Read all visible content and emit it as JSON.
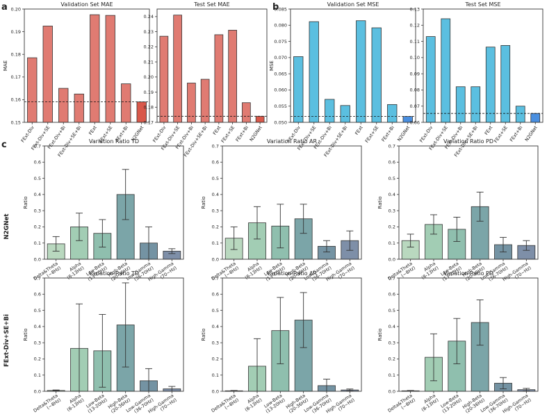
{
  "panel_letters": [
    "a",
    "b",
    "c"
  ],
  "row_labels": [
    "N2GNet",
    "FExt-Div+SE+Bi"
  ],
  "chart_data": [
    {
      "type": "bar",
      "title": "Validation Set MAE",
      "ylabel": "MAE",
      "categories": [
        "FExt-Div",
        "FExt-Div+SE",
        "FExt-Div+Bi",
        "FExt-Div+SE+Bi",
        "FExt",
        "FExt+SE",
        "FExt+Bi",
        "N2GNet"
      ],
      "values": [
        0.1785,
        0.1925,
        0.165,
        0.1625,
        0.1975,
        0.1972,
        0.167,
        0.159
      ],
      "ylim": [
        0.15,
        0.2
      ],
      "yticks": [
        "0.15",
        "0.16",
        "0.17",
        "0.18",
        "0.19",
        "0.20"
      ],
      "reference_line": 0.159,
      "colors": [
        "#e07b72",
        "#e07b72",
        "#e07b72",
        "#e07b72",
        "#e07b72",
        "#e07b72",
        "#e07b72",
        "#d9584a"
      ]
    },
    {
      "type": "bar",
      "title": "Test Set MAE",
      "ylabel": "",
      "categories": [
        "FExt-Div",
        "FExt-Div+SE",
        "FExt-Div+Bi",
        "FExt-Div+SE+Bi",
        "FExt",
        "FExt+SE",
        "FExt+Bi",
        "N2GNet"
      ],
      "values": [
        0.227,
        0.241,
        0.196,
        0.1985,
        0.228,
        0.231,
        0.183,
        0.174
      ],
      "ylim": [
        0.17,
        0.245
      ],
      "yticks": [
        "0.17",
        "0.18",
        "0.19",
        "0.20",
        "0.21",
        "0.22",
        "0.23",
        "0.24"
      ],
      "reference_line": 0.174,
      "colors": [
        "#e07b72",
        "#e07b72",
        "#e07b72",
        "#e07b72",
        "#e07b72",
        "#e07b72",
        "#e07b72",
        "#d9584a"
      ]
    },
    {
      "type": "bar",
      "title": "Validation Set MSE",
      "ylabel": "MSE",
      "categories": [
        "FExt-Div",
        "FExt-Div+SE",
        "FExt-Div+Bi",
        "FExt-Div+SE+Bi",
        "FExt",
        "FExt+SE",
        "FExt+Bi",
        "N2GNet"
      ],
      "values": [
        0.0703,
        0.0811,
        0.0571,
        0.0552,
        0.0814,
        0.0792,
        0.0555,
        0.0518
      ],
      "ylim": [
        0.05,
        0.085
      ],
      "yticks": [
        "0.050",
        "0.055",
        "0.060",
        "0.065",
        "0.070",
        "0.075",
        "0.080",
        "0.085"
      ],
      "reference_line": 0.0518,
      "colors": [
        "#5bbfe0",
        "#5bbfe0",
        "#5bbfe0",
        "#5bbfe0",
        "#5bbfe0",
        "#5bbfe0",
        "#5bbfe0",
        "#4a8fe0"
      ]
    },
    {
      "type": "bar",
      "title": "Test Set MSE",
      "ylabel": "",
      "categories": [
        "FExt-Div",
        "FExt-Div+SE",
        "FExt-Div+Bi",
        "FExt-Div+SE+Bi",
        "FExt",
        "FExt+SE",
        "FExt+Bi",
        "N2GNet"
      ],
      "values": [
        0.113,
        0.124,
        0.082,
        0.082,
        0.1065,
        0.1075,
        0.07,
        0.0655
      ],
      "ylim": [
        0.06,
        0.13
      ],
      "yticks": [
        "0.06",
        "0.07",
        "0.08",
        "0.09",
        "0.10",
        "0.11",
        "0.12",
        "0.13"
      ],
      "reference_line": 0.0655,
      "colors": [
        "#5bbfe0",
        "#5bbfe0",
        "#5bbfe0",
        "#5bbfe0",
        "#5bbfe0",
        "#5bbfe0",
        "#5bbfe0",
        "#4a8fe0"
      ]
    },
    {
      "type": "bar",
      "title": "Variation Ratio TD",
      "ylabel": "Ratio",
      "categories": [
        "Delta&Theta\n(~8Hz)",
        "Alpha\n(8-13Hz)",
        "Low-Beta\n(13-20Hz)",
        "High-Beta\n(20-36Hz)",
        "Low-Gamma\n(36-70Hz)",
        "High-Gamma\n(70~Hz)"
      ],
      "values": [
        0.095,
        0.2,
        0.16,
        0.4,
        0.1,
        0.05
      ],
      "errors": [
        0.045,
        0.085,
        0.085,
        0.155,
        0.1,
        0.015
      ],
      "ylim": [
        0,
        0.7
      ],
      "yticks": [
        "0.0",
        "0.1",
        "0.2",
        "0.3",
        "0.4",
        "0.5",
        "0.6",
        "0.7"
      ],
      "colors": [
        "#b9d8bf",
        "#a2cdb4",
        "#8fbfae",
        "#7ba5a8",
        "#7493a3",
        "#7e8fa8"
      ]
    },
    {
      "type": "bar",
      "title": "Variation Ratio AR",
      "ylabel": "Ratio",
      "categories": [
        "Delta&Theta\n(~8Hz)",
        "Alpha\n(8-13Hz)",
        "Low-Beta\n(13-20Hz)",
        "High-Beta\n(20-36Hz)",
        "Low-Gamma\n(36-70Hz)",
        "High-Gamma\n(70~Hz)"
      ],
      "values": [
        0.13,
        0.225,
        0.205,
        0.25,
        0.08,
        0.115
      ],
      "errors": [
        0.07,
        0.1,
        0.135,
        0.09,
        0.035,
        0.06
      ],
      "ylim": [
        0,
        0.7
      ],
      "yticks": [
        "0.0",
        "0.1",
        "0.2",
        "0.3",
        "0.4",
        "0.5",
        "0.6",
        "0.7"
      ],
      "colors": [
        "#b9d8bf",
        "#a2cdb4",
        "#8fbfae",
        "#7ba5a8",
        "#7493a3",
        "#7e8fa8"
      ]
    },
    {
      "type": "bar",
      "title": "Variation Ratio PD",
      "ylabel": "Ratio",
      "categories": [
        "Delta&Theta\n(~8Hz)",
        "Alpha\n(8-13Hz)",
        "Low-Beta\n(13-20Hz)",
        "High-Beta\n(20-36Hz)",
        "Low-Gamma\n(36-70Hz)",
        "High-Gamma\n(70~Hz)"
      ],
      "values": [
        0.115,
        0.215,
        0.185,
        0.325,
        0.09,
        0.085
      ],
      "errors": [
        0.04,
        0.06,
        0.075,
        0.09,
        0.045,
        0.03
      ],
      "ylim": [
        0,
        0.7
      ],
      "yticks": [
        "0.0",
        "0.1",
        "0.2",
        "0.3",
        "0.4",
        "0.5",
        "0.6",
        "0.7"
      ],
      "colors": [
        "#b9d8bf",
        "#a2cdb4",
        "#8fbfae",
        "#7ba5a8",
        "#7493a3",
        "#7e8fa8"
      ]
    },
    {
      "type": "bar",
      "title": "Variation Ratio TD",
      "ylabel": "Ratio",
      "categories": [
        "Delta&Theta\n(~8Hz)",
        "Alpha\n(8-13Hz)",
        "Low-Beta\n(13-20Hz)",
        "High-Beta\n(20-36Hz)",
        "Low-Gamma\n(36-70Hz)",
        "High-Gamma\n(70~Hz)"
      ],
      "values": [
        0.005,
        0.265,
        0.25,
        0.41,
        0.065,
        0.015
      ],
      "errors": [
        0.003,
        0.275,
        0.225,
        0.26,
        0.075,
        0.015
      ],
      "ylim": [
        0,
        0.7
      ],
      "yticks": [
        "0.0",
        "0.1",
        "0.2",
        "0.3",
        "0.4",
        "0.5",
        "0.6",
        "0.7"
      ],
      "colors": [
        "#b9d8bf",
        "#a2cdb4",
        "#8fbfae",
        "#7ba5a8",
        "#7493a3",
        "#7e8fa8"
      ]
    },
    {
      "type": "bar",
      "title": "Variation Ratio AR",
      "ylabel": "Ratio",
      "categories": [
        "Delta&Theta\n(~8Hz)",
        "Alpha\n(8-13Hz)",
        "Low-Beta\n(13-20Hz)",
        "High-Beta\n(20-36Hz)",
        "Low-Gamma\n(36-70Hz)",
        "High-Gamma\n(70~Hz)"
      ],
      "values": [
        0.003,
        0.155,
        0.375,
        0.44,
        0.035,
        0.008
      ],
      "errors": [
        0.002,
        0.17,
        0.205,
        0.17,
        0.04,
        0.006
      ],
      "ylim": [
        0,
        0.7
      ],
      "yticks": [
        "0.0",
        "0.1",
        "0.2",
        "0.3",
        "0.4",
        "0.5",
        "0.6",
        "0.7"
      ],
      "colors": [
        "#b9d8bf",
        "#a2cdb4",
        "#8fbfae",
        "#7ba5a8",
        "#7493a3",
        "#7e8fa8"
      ]
    },
    {
      "type": "bar",
      "title": "Variation Ratio PD",
      "ylabel": "Ratio",
      "categories": [
        "Delta&Theta\n(~8Hz)",
        "Alpha\n(8-13Hz)",
        "Low-Beta\n(13-20Hz)",
        "High-Beta\n(20-36Hz)",
        "Low-Gamma\n(36-70Hz)",
        "High-Gamma\n(70~Hz)"
      ],
      "values": [
        0.003,
        0.21,
        0.31,
        0.425,
        0.05,
        0.01
      ],
      "errors": [
        0.002,
        0.145,
        0.14,
        0.14,
        0.035,
        0.008
      ],
      "ylim": [
        0,
        0.7
      ],
      "yticks": [
        "0.0",
        "0.1",
        "0.2",
        "0.3",
        "0.4",
        "0.5",
        "0.6",
        "0.7"
      ],
      "colors": [
        "#b9d8bf",
        "#a2cdb4",
        "#8fbfae",
        "#7ba5a8",
        "#7493a3",
        "#7e8fa8"
      ]
    }
  ]
}
